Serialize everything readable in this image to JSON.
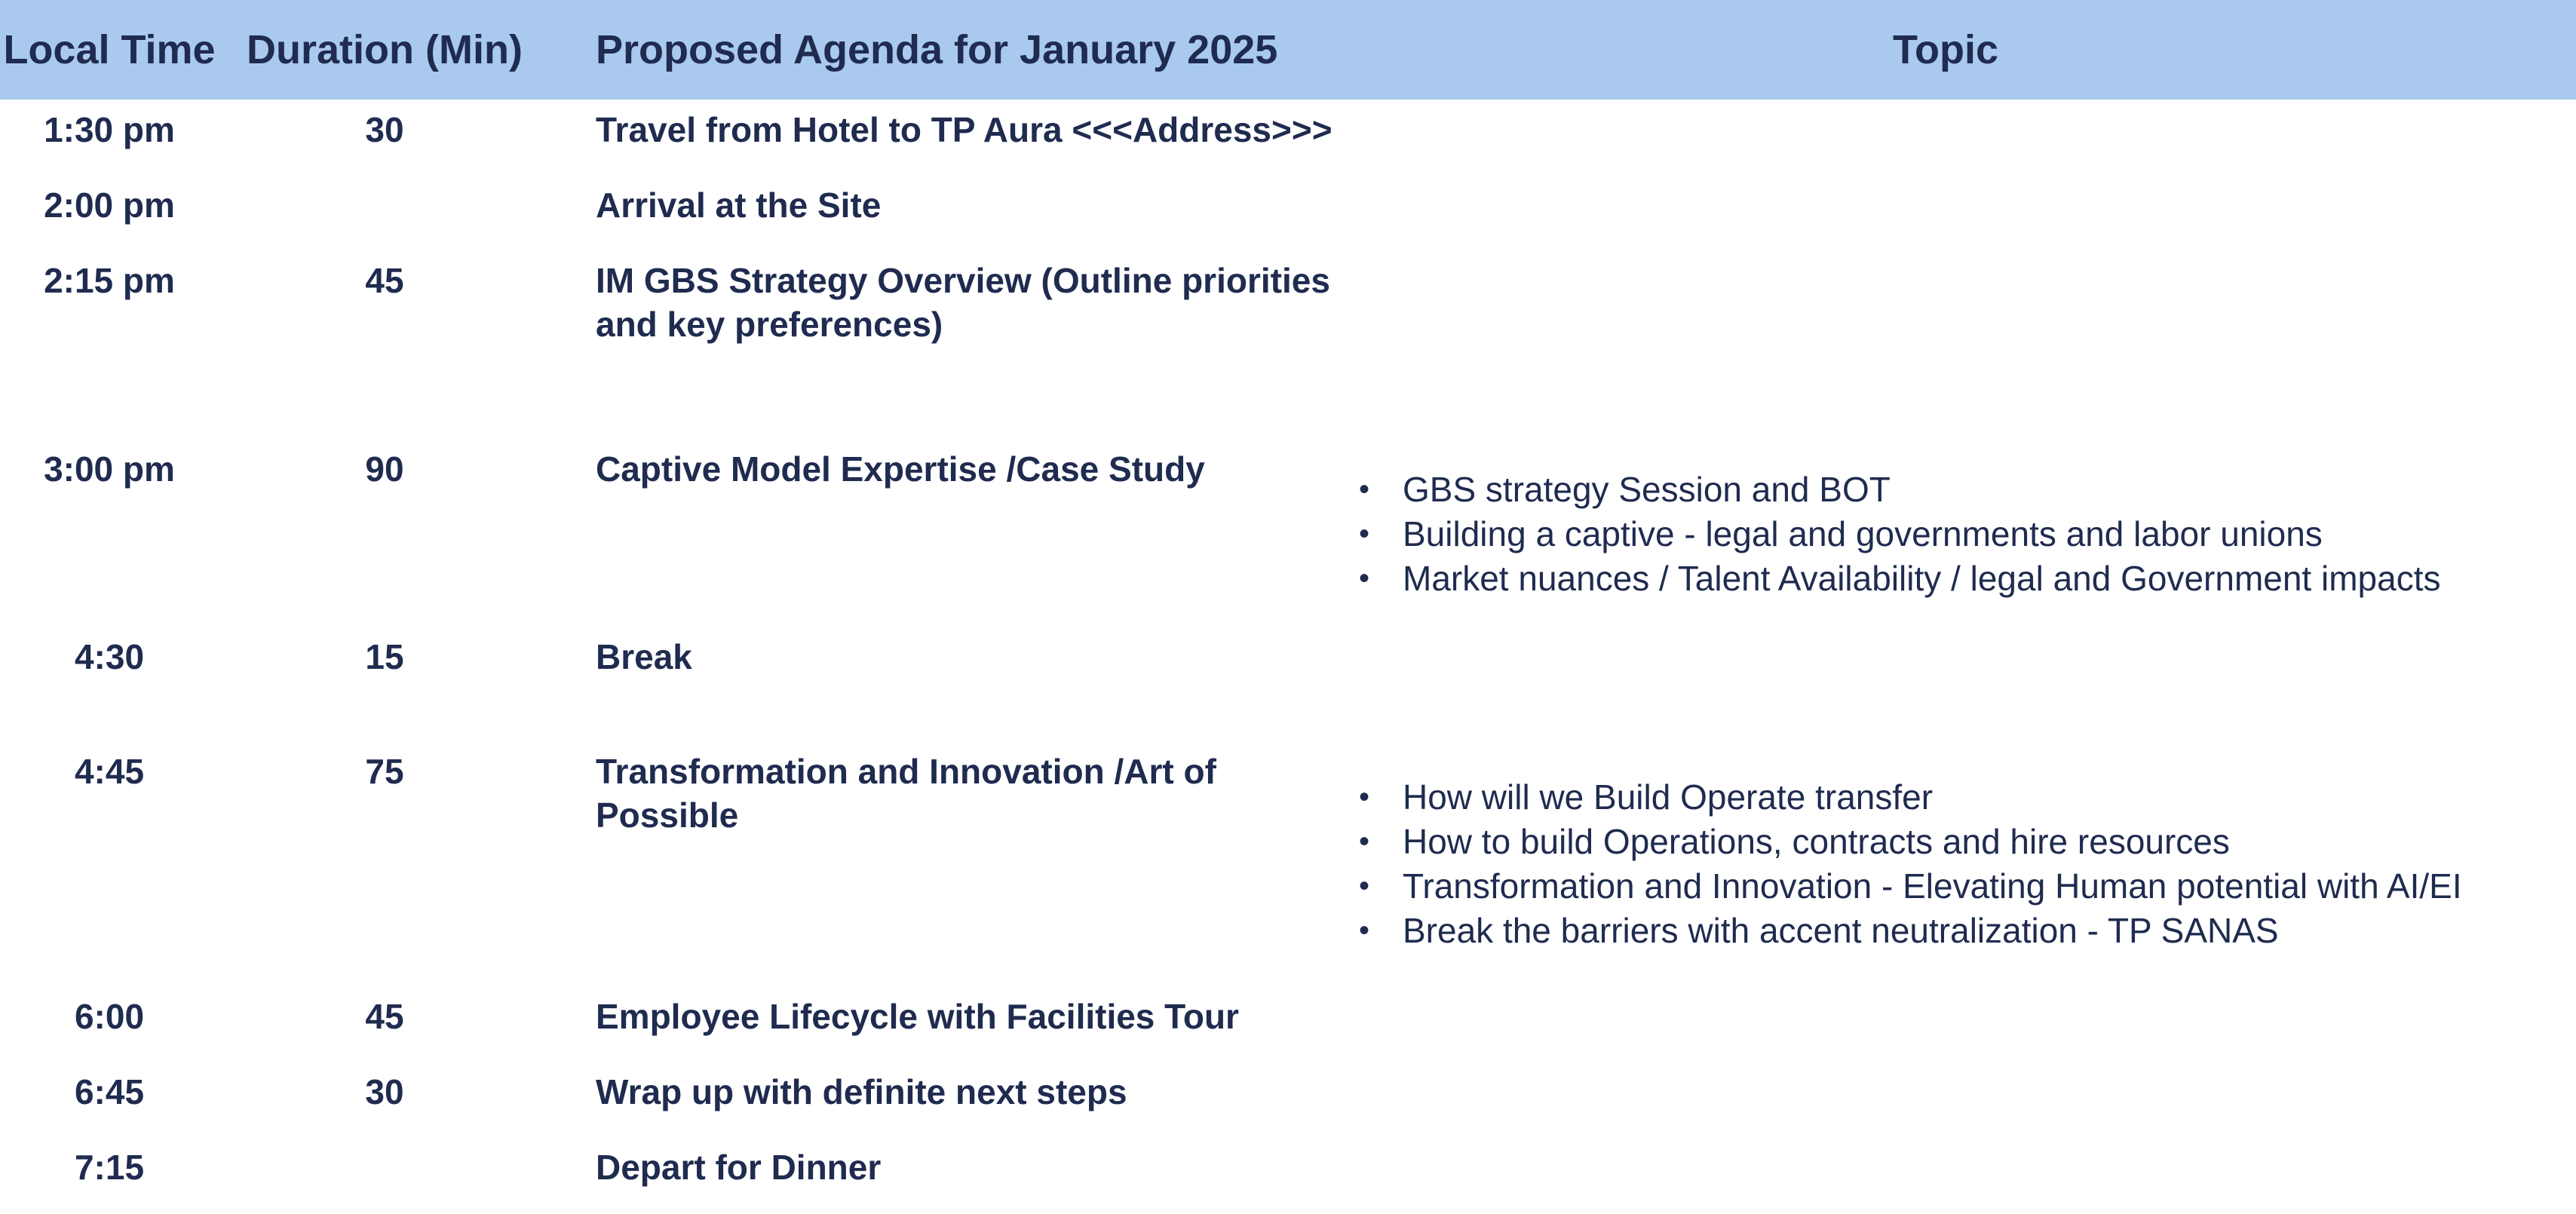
{
  "header": {
    "local_time": "Local Time",
    "duration": "Duration (Min)",
    "agenda": "Proposed Agenda for January 2025",
    "topic": "Topic"
  },
  "rows": [
    {
      "time": "1:30 pm",
      "duration": "30",
      "agenda": "Travel from  Hotel to TP Aura  <<<Address>>>"
    },
    {
      "time": "2:00 pm",
      "duration": "",
      "agenda": "Arrival at the Site"
    },
    {
      "time": "2:15 pm",
      "duration": "45",
      "agenda": "IM GBS Strategy Overview (Outline priorities and key preferences)"
    },
    {
      "time": "3:00 pm",
      "duration": "90",
      "agenda": "Captive Model Expertise /Case Study",
      "topics": [
        "GBS strategy Session and BOT",
        "Building a captive - legal and governments and labor unions",
        "Market nuances / Talent Availability / legal and Government impacts"
      ]
    },
    {
      "time": "4:30",
      "duration": "15",
      "agenda": "Break"
    },
    {
      "time": "4:45",
      "duration": "75",
      "agenda": "Transformation and Innovation /Art of Possible",
      "topics": [
        "How will we Build Operate transfer",
        "How to build Operations, contracts and hire resources",
        "Transformation and Innovation - Elevating Human potential with AI/EI",
        "Break the barriers with accent neutralization  - TP SANAS"
      ]
    },
    {
      "time": "6:00",
      "duration": "45",
      "agenda": "Employee Lifecycle with Facilities  Tour"
    },
    {
      "time": "6:45",
      "duration": "30",
      "agenda": "Wrap up with definite next steps"
    },
    {
      "time": "7:15",
      "duration": "",
      "agenda": "Depart for Dinner"
    }
  ],
  "bullet_symbol": "•"
}
